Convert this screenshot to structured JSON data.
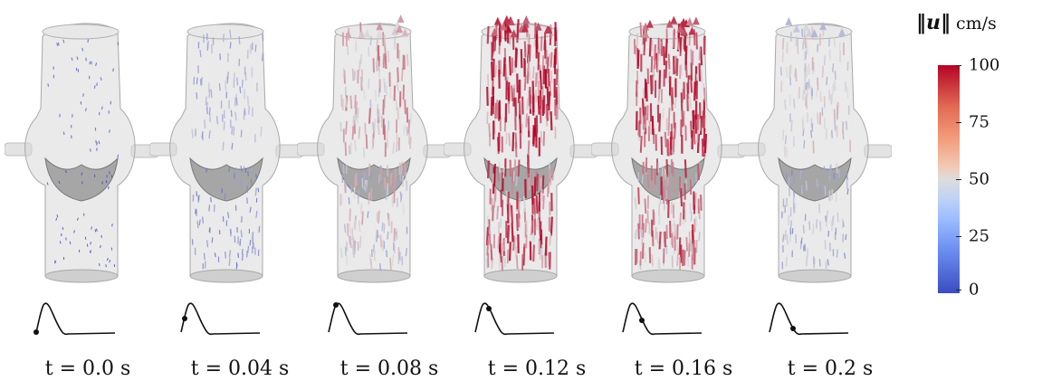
{
  "figure": {
    "frames": [
      {
        "time_label": "t = 0.0 s",
        "speed_level": 0.02,
        "pulse_phase": 0.0
      },
      {
        "time_label": "t = 0.04 s",
        "speed_level": 0.3,
        "pulse_phase": 0.2
      },
      {
        "time_label": "t = 0.08 s",
        "speed_level": 0.6,
        "pulse_phase": 0.4
      },
      {
        "time_label": "t = 0.12 s",
        "speed_level": 0.95,
        "pulse_phase": 0.6
      },
      {
        "time_label": "t = 0.16 s",
        "speed_level": 0.85,
        "pulse_phase": 0.8
      },
      {
        "time_label": "t = 0.2 s",
        "speed_level": 0.45,
        "pulse_phase": 1.0
      }
    ],
    "colorbar": {
      "quantity_symbol": "‖u‖",
      "unit": "cm/s",
      "ticks": [
        "100",
        "75",
        "50",
        "25",
        "0"
      ],
      "colors": {
        "low": "#3b4cc0",
        "mid": "#dddcdc",
        "high": "#b40426"
      }
    }
  }
}
